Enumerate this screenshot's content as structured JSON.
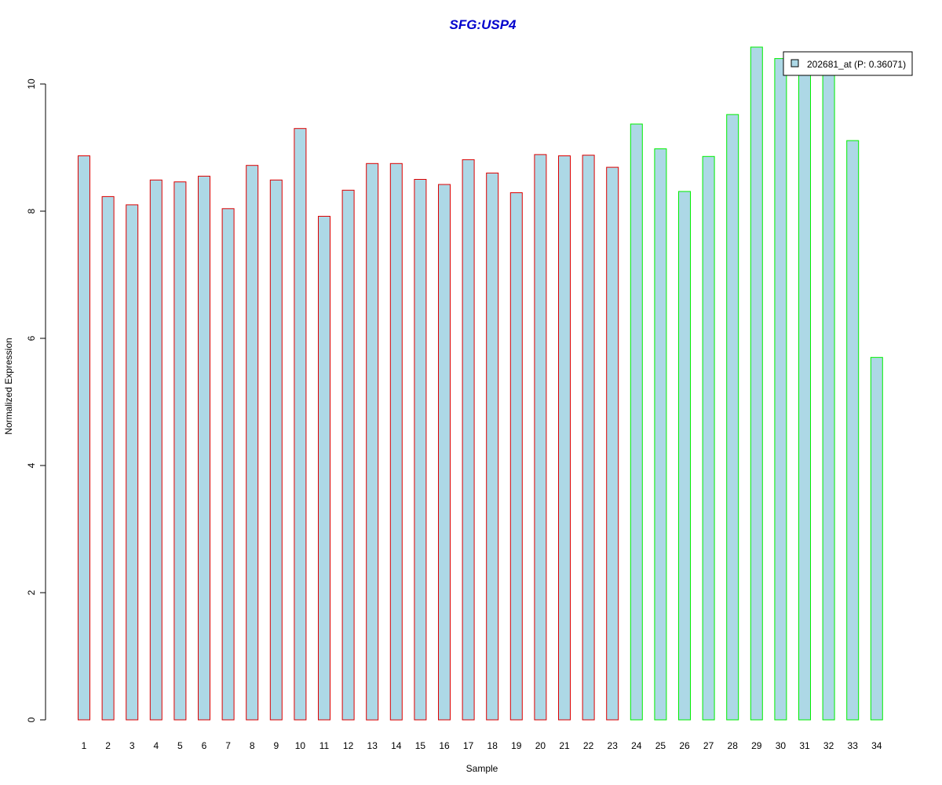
{
  "colors": {
    "title": "#0000CD",
    "bar_fill": "#ADD8E6",
    "group1_border": "#DD0000",
    "group2_border": "#00EE00",
    "axis": "#000000"
  },
  "chart_data": {
    "type": "bar",
    "title": "SFG:USP4",
    "xlabel": "Sample",
    "ylabel": "Normalized Expression",
    "ylim": [
      0,
      10.6
    ],
    "yticks": [
      0,
      2,
      4,
      6,
      8,
      10
    ],
    "grid": false,
    "legend_position": "top-right",
    "categories": [
      "1",
      "2",
      "3",
      "4",
      "5",
      "6",
      "7",
      "8",
      "9",
      "10",
      "11",
      "12",
      "13",
      "14",
      "15",
      "16",
      "17",
      "18",
      "19",
      "20",
      "21",
      "22",
      "23",
      "24",
      "25",
      "26",
      "27",
      "28",
      "29",
      "30",
      "31",
      "32",
      "33",
      "34"
    ],
    "series": [
      {
        "name": "202681_at (P: 0.36071)",
        "values": [
          8.87,
          8.23,
          8.1,
          8.49,
          8.46,
          8.55,
          8.04,
          8.72,
          8.49,
          9.3,
          7.92,
          8.33,
          8.75,
          8.75,
          8.5,
          8.42,
          8.81,
          8.6,
          8.29,
          8.89,
          8.87,
          8.88,
          8.69,
          9.37,
          8.98,
          8.31,
          8.86,
          9.52,
          10.58,
          10.4,
          10.2,
          10.2,
          9.11,
          5.7
        ],
        "group": [
          1,
          1,
          1,
          1,
          1,
          1,
          1,
          1,
          1,
          1,
          1,
          1,
          1,
          1,
          1,
          1,
          1,
          1,
          1,
          1,
          1,
          1,
          1,
          2,
          2,
          2,
          2,
          2,
          2,
          2,
          2,
          2,
          2,
          2
        ]
      }
    ]
  }
}
